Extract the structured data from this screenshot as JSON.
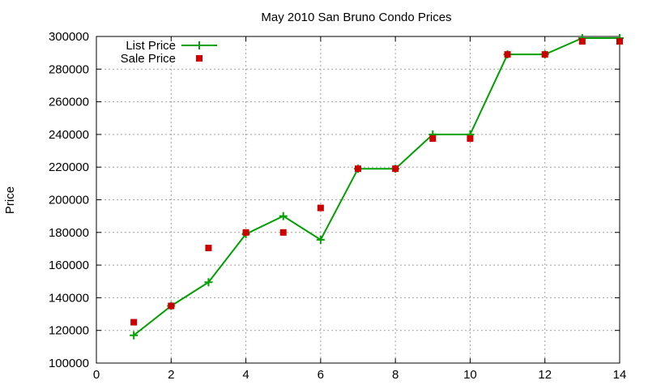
{
  "chart_data": {
    "type": "line",
    "title": "May 2010 San Bruno Condo Prices",
    "xlabel": "",
    "ylabel": "Price",
    "xlim": [
      0,
      14
    ],
    "ylim": [
      100000,
      300000
    ],
    "x_ticks": [
      0,
      2,
      4,
      6,
      8,
      10,
      12,
      14
    ],
    "y_ticks": [
      100000,
      120000,
      140000,
      160000,
      180000,
      200000,
      220000,
      240000,
      260000,
      280000,
      300000
    ],
    "grid": true,
    "legend_position": "top-left",
    "series": [
      {
        "name": "List Price",
        "style": "line-with-plus-markers",
        "color": "#00a000",
        "x": [
          1,
          2,
          3,
          4,
          5,
          6,
          7,
          8,
          9,
          10,
          11,
          12,
          13,
          14
        ],
        "y": [
          117000,
          135000,
          149500,
          179000,
          190000,
          175500,
          219000,
          219000,
          240000,
          240000,
          289000,
          289000,
          299000,
          299000
        ]
      },
      {
        "name": "Sale Price",
        "style": "square-markers",
        "color": "#cc0000",
        "x": [
          1,
          2,
          3,
          4,
          5,
          6,
          7,
          8,
          9,
          10,
          11,
          12,
          13,
          14
        ],
        "y": [
          125000,
          135000,
          170500,
          180000,
          180000,
          195000,
          219000,
          219000,
          237500,
          237500,
          289000,
          289000,
          297000,
          297000
        ]
      }
    ]
  }
}
